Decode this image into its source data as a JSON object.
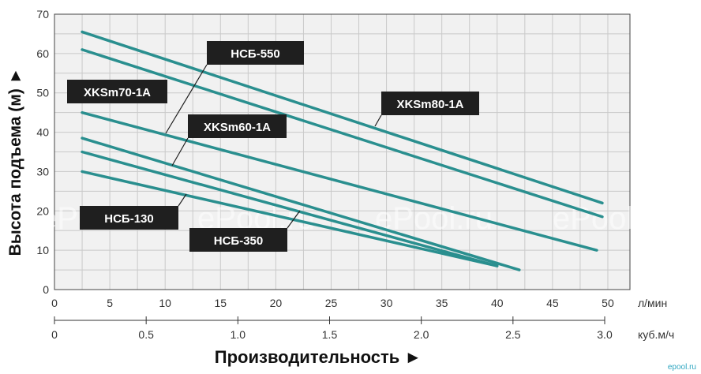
{
  "chart_data": {
    "type": "line",
    "xlabel": "Производительность ►",
    "ylabel": "Высота подъема (м) ►",
    "x_unit_primary": "л/мин",
    "x_unit_secondary": "куб.м/ч",
    "xlim": [
      0,
      52
    ],
    "ylim": [
      0,
      70
    ],
    "xticks": [
      0,
      5,
      10,
      15,
      20,
      25,
      30,
      35,
      40,
      45,
      50
    ],
    "yticks": [
      0,
      10,
      20,
      30,
      40,
      50,
      60,
      70
    ],
    "secondary_xticks": [
      "0",
      "0.5",
      "1.0",
      "1.5",
      "2.0",
      "2.5",
      "3.0"
    ],
    "grid": true,
    "line_color": "#2a8f8f",
    "label_bg": "#1f1f1f",
    "series": [
      {
        "name": "XKSm80-1A",
        "x": [
          2.5,
          49.5
        ],
        "y": [
          65.5,
          22
        ]
      },
      {
        "name": "HCБ-550",
        "x": [
          2.5,
          49.5
        ],
        "y": [
          61,
          18.5
        ]
      },
      {
        "name": "XKSm70-1A",
        "x": [
          2.5,
          49
        ],
        "y": [
          45,
          10
        ]
      },
      {
        "name": "XKSm60-1A",
        "x": [
          2.5,
          42
        ],
        "y": [
          38.5,
          5
        ]
      },
      {
        "name": "HCБ-350",
        "x": [
          2.5,
          40
        ],
        "y": [
          35,
          6
        ]
      },
      {
        "name": "HCБ-130",
        "x": [
          2.5,
          40
        ],
        "y": [
          30,
          6
        ]
      }
    ],
    "annotations": [
      {
        "text": "HCБ-550",
        "series": "HCБ-550"
      },
      {
        "text": "XKSm70-1A",
        "series": "XKSm70-1A"
      },
      {
        "text": "XKSm80-1A",
        "series": "XKSm80-1A"
      },
      {
        "text": "XKSm60-1A",
        "series": "XKSm60-1A"
      },
      {
        "text": "HCБ-130",
        "series": "HCБ-130"
      },
      {
        "text": "HCБ-350",
        "series": "HCБ-350"
      }
    ]
  },
  "watermark": {
    "text": "ePool.ru"
  },
  "logo": {
    "text": "epool.ru"
  }
}
